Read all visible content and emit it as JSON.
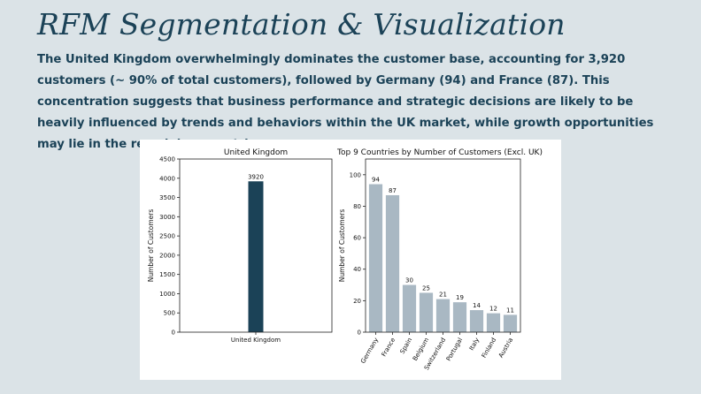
{
  "header": {
    "title": "RFM Segmentation & Visualization",
    "description": "The United Kingdom overwhelmingly dominates the customer base, accounting for 3,920 customers (~ 90% of total customers), followed by Germany (94) and France (87). This concentration suggests that business performance and strategic decisions are likely to be heavily influenced by trends and behaviors within the UK market, while growth opportunities may lie in the remaining countries."
  },
  "colors": {
    "uk_bar": "#1b4257",
    "other_bars": "#a9b8c3"
  },
  "chart_data": [
    {
      "type": "bar",
      "title": "United Kingdom",
      "ylabel": "Number of Customers",
      "xlabel": "",
      "categories": [
        "United Kingdom"
      ],
      "values": [
        3920
      ],
      "ylim": [
        0,
        4500
      ],
      "yticks": [
        0,
        500,
        1000,
        1500,
        2000,
        2500,
        3000,
        3500,
        4000,
        4500
      ],
      "data_labels": [
        "3920"
      ]
    },
    {
      "type": "bar",
      "title": "Top 9 Countries by Number of Customers (Excl. UK)",
      "ylabel": "Number of Customers",
      "xlabel": "",
      "categories": [
        "Germany",
        "France",
        "Spain",
        "Belgium",
        "Switzerland",
        "Portugal",
        "Italy",
        "Finland",
        "Austria"
      ],
      "values": [
        94,
        87,
        30,
        25,
        21,
        19,
        14,
        12,
        11
      ],
      "ylim": [
        0,
        110
      ],
      "yticks": [
        0,
        20,
        40,
        60,
        80,
        100
      ],
      "data_labels": [
        "94",
        "87",
        "30",
        "25",
        "21",
        "19",
        "14",
        "12",
        "11"
      ]
    }
  ]
}
